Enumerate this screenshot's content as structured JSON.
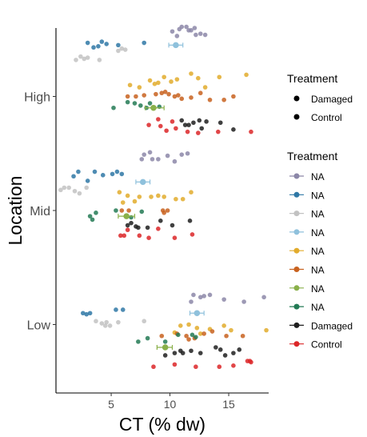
{
  "chart_data": {
    "type": "scatter",
    "xlabel": "CT (% dw)",
    "ylabel": "Location",
    "x_ticks": [
      "5",
      "10",
      "15"
    ],
    "x_tick_values": [
      5,
      10,
      15
    ],
    "xlim": [
      0.3,
      18.4
    ],
    "categories": [
      "High",
      "Mid",
      "Low"
    ],
    "legend_position": "right",
    "legend_top": {
      "title": "Treatment",
      "entries": [
        {
          "label": "Damaged"
        },
        {
          "label": "Control"
        }
      ]
    },
    "legend_bottom": {
      "title": "Treatment",
      "entries": [
        {
          "label": "NA",
          "color": "#8c87a8"
        },
        {
          "label": "NA",
          "color": "#2f78a6"
        },
        {
          "label": "NA",
          "color": "#c2c2c2"
        },
        {
          "label": "NA",
          "color": "#8fc1dc"
        },
        {
          "label": "NA",
          "color": "#e2ab2c"
        },
        {
          "label": "NA",
          "color": "#c8621f"
        },
        {
          "label": "NA",
          "color": "#8ab04a"
        },
        {
          "label": "NA",
          "color": "#237a55"
        },
        {
          "label": "Damaged",
          "color": "#1f1f1f"
        },
        {
          "label": "Control",
          "color": "#dc2628"
        }
      ]
    },
    "series": [
      {
        "location": "High",
        "offset": 0.55,
        "color": "#8c87a8",
        "x": [
          10.2,
          10.6,
          11.0,
          11.4,
          11.8,
          12.2,
          12.6,
          13.0,
          10.8,
          11.6,
          12.1
        ],
        "jitter": [
          0.02,
          -0.02,
          0.06,
          0.06,
          0.03,
          -0.01,
          0.0,
          -0.01,
          0.04,
          0.03,
          0.05
        ]
      },
      {
        "location": "High",
        "offset": 0.45,
        "color": "#2f78a6",
        "x": [
          3.0,
          3.5,
          4.2,
          4.6,
          5.6,
          7.8,
          3.9
        ],
        "jitter": [
          0.02,
          -0.02,
          0.03,
          0.01,
          0.0,
          0.02,
          -0.01
        ]
      },
      {
        "location": "High",
        "offset": 0.4,
        "color": "#c2c2c2",
        "x": [
          2.0,
          2.4,
          2.7,
          3.0,
          4.0,
          5.6,
          5.9,
          6.2
        ],
        "jitter": [
          -0.08,
          -0.05,
          -0.07,
          -0.06,
          -0.08,
          0.0,
          0.02,
          0.01
        ]
      },
      {
        "location": "High",
        "offset": 0.45,
        "color": "#8fc1dc",
        "x": [
          10.5
        ],
        "err": [
          9.9,
          11.1
        ],
        "jitter": [
          0.0
        ],
        "mean": true
      },
      {
        "location": "High",
        "offset": 0.1,
        "color": "#e2ab2c",
        "x": [
          6.6,
          7.4,
          8.3,
          9.0,
          10.1,
          10.6,
          11.8,
          12.4,
          14.2,
          16.5,
          13.0,
          9.5,
          8.7
        ],
        "jitter": [
          0.0,
          -0.02,
          0.04,
          0.02,
          0.03,
          0.05,
          0.1,
          0.06,
          0.07,
          0.09,
          -0.02,
          0.07,
          0.01
        ]
      },
      {
        "location": "High",
        "offset": 0.0,
        "color": "#c8621f",
        "x": [
          6.4,
          7.1,
          7.8,
          8.8,
          9.3,
          9.9,
          10.4,
          11.0,
          11.8,
          12.6,
          13.4,
          14.6,
          15.4,
          10.7,
          9.6
        ],
        "jitter": [
          0.0,
          0.0,
          0.01,
          0.02,
          0.03,
          0.02,
          0.0,
          -0.02,
          -0.01,
          0.03,
          -0.03,
          -0.03,
          0.0,
          0.01,
          0.04
        ]
      },
      {
        "location": "High",
        "offset": -0.1,
        "color": "#237a55",
        "x": [
          5.2,
          6.4,
          7.5,
          8.3,
          9.1,
          8.0,
          7.0
        ],
        "jitter": [
          0.0,
          0.05,
          0.02,
          0.04,
          0.01,
          0.0,
          0.04
        ]
      },
      {
        "location": "High",
        "offset": -0.1,
        "color": "#8ab04a",
        "x": [
          8.6
        ],
        "err": [
          7.9,
          9.5
        ],
        "jitter": [
          0.0
        ],
        "mean": true
      },
      {
        "location": "High",
        "offset": -0.25,
        "color": "#1f1f1f",
        "x": [
          11.0,
          11.6,
          12.0,
          12.5,
          13.1,
          14.3,
          15.4,
          11.3,
          12.7
        ],
        "jitter": [
          0.04,
          0.0,
          0.02,
          0.04,
          0.03,
          0.02,
          -0.04,
          0.0,
          -0.03
        ]
      },
      {
        "location": "High",
        "offset": -0.25,
        "color": "#dc2628",
        "x": [
          8.2,
          9.0,
          9.7,
          10.5,
          11.5,
          12.4,
          14.1,
          16.9,
          9.2,
          10.2
        ],
        "jitter": [
          0.0,
          0.05,
          -0.05,
          -0.03,
          -0.06,
          -0.07,
          -0.06,
          -0.06,
          -0.01,
          0.03
        ]
      },
      {
        "location": "Mid",
        "offset": 0.45,
        "color": "#8c87a8",
        "x": [
          7.8,
          8.3,
          9.0,
          9.8,
          10.4,
          11.0,
          11.5,
          7.6,
          8.5
        ],
        "jitter": [
          0.04,
          0.06,
          0.0,
          0.03,
          -0.02,
          0.04,
          0.05,
          0.0,
          0.0
        ]
      },
      {
        "location": "Mid",
        "offset": 0.3,
        "color": "#2f78a6",
        "x": [
          1.8,
          2.2,
          3.0,
          3.6,
          4.3,
          5.1,
          5.5,
          5.9
        ],
        "jitter": [
          0.0,
          0.04,
          -0.04,
          0.04,
          0.01,
          0.02,
          0.04,
          0.02
        ]
      },
      {
        "location": "Mid",
        "offset": 0.2,
        "color": "#c2c2c2",
        "x": [
          0.7,
          1.0,
          1.4,
          1.9,
          2.3,
          2.9
        ],
        "jitter": [
          -0.02,
          0.0,
          0.0,
          -0.03,
          -0.05,
          0.0
        ]
      },
      {
        "location": "Mid",
        "offset": 0.25,
        "color": "#8fc1dc",
        "x": [
          7.7
        ],
        "err": [
          7.1,
          8.3
        ],
        "jitter": [
          0.0
        ],
        "mean": true
      },
      {
        "location": "Mid",
        "offset": 0.1,
        "color": "#e2ab2c",
        "x": [
          5.7,
          6.4,
          7.0,
          8.4,
          9.5,
          10.5,
          11.1,
          11.8,
          6.0,
          7.4,
          9.0
        ],
        "jitter": [
          0.06,
          0.03,
          -0.02,
          0.02,
          0.02,
          0.0,
          0.0,
          0.06,
          -0.03,
          0.02,
          0.03
        ]
      },
      {
        "location": "Mid",
        "offset": 0.0,
        "color": "#c8621f",
        "x": [
          5.9,
          6.5,
          9.4,
          9.8,
          9.5
        ],
        "jitter": [
          0.0,
          0.0,
          0.0,
          0.0,
          -0.02
        ]
      },
      {
        "location": "Mid",
        "offset": -0.05,
        "color": "#237a55",
        "x": [
          3.2,
          3.7,
          5.4,
          6.7,
          7.6,
          3.4
        ],
        "jitter": [
          0.0,
          0.03,
          0.05,
          -0.01,
          0.04,
          -0.03
        ]
      },
      {
        "location": "Mid",
        "offset": -0.05,
        "color": "#8ab04a",
        "x": [
          6.3
        ],
        "err": [
          5.6,
          7.0
        ],
        "jitter": [
          0.0
        ],
        "mean": true
      },
      {
        "location": "Mid",
        "offset": -0.15,
        "color": "#1f1f1f",
        "x": [
          6.7,
          7.3,
          8.1,
          9.2,
          10.2,
          11.7,
          6.4,
          7.1
        ],
        "jitter": [
          0.04,
          0.0,
          0.0,
          0.06,
          0.02,
          0.06,
          0.02,
          0.01
        ]
      },
      {
        "location": "Mid",
        "offset": -0.2,
        "color": "#dc2628",
        "x": [
          5.8,
          6.4,
          7.4,
          8.2,
          9.0,
          10.4,
          11.9,
          6.1
        ],
        "jitter": [
          -0.02,
          0.03,
          -0.02,
          -0.04,
          0.04,
          -0.04,
          -0.01,
          -0.02
        ]
      },
      {
        "location": "Low",
        "offset": 0.2,
        "color": "#8c87a8",
        "x": [
          11.8,
          12.6,
          13.4,
          14.6,
          16.3,
          18.0,
          12.9,
          12.0
        ],
        "jitter": [
          0.0,
          0.04,
          0.06,
          0.02,
          0.0,
          0.04,
          0.05,
          0.06
        ]
      },
      {
        "location": "Low",
        "offset": 0.1,
        "color": "#2f78a6",
        "x": [
          2.6,
          3.2,
          5.4,
          6.0,
          2.9
        ],
        "jitter": [
          0.0,
          0.0,
          0.03,
          0.03,
          -0.01
        ]
      },
      {
        "location": "Low",
        "offset": 0.05,
        "color": "#c2c2c2",
        "x": [
          3.7,
          4.2,
          4.5,
          4.6,
          5.6,
          7.8,
          4.9
        ],
        "jitter": [
          -0.02,
          -0.04,
          -0.06,
          -0.03,
          -0.03,
          -0.02,
          -0.06
        ]
      },
      {
        "location": "Low",
        "offset": 0.05,
        "color": "#8fc1dc",
        "x": [
          12.3
        ],
        "err": [
          11.7,
          12.9
        ],
        "jitter": [
          0.05
        ],
        "mean": true
      },
      {
        "location": "Low",
        "offset": -0.05,
        "color": "#e2ab2c",
        "x": [
          10.4,
          11.6,
          12.3,
          13.4,
          14.6,
          15.2,
          18.2,
          10.9,
          12.6
        ],
        "jitter": [
          -0.02,
          0.05,
          0.02,
          0.01,
          0.04,
          0.0,
          0.0,
          0.04,
          -0.03
        ]
      },
      {
        "location": "Low",
        "offset": -0.1,
        "color": "#c8621f",
        "x": [
          9.3,
          10.6,
          11.4,
          12.1,
          13.6,
          14.8,
          16.2,
          12.9,
          11.6
        ],
        "jitter": [
          0.0,
          0.02,
          0.0,
          -0.02,
          0.04,
          0.0,
          0.0,
          0.02,
          -0.03
        ]
      },
      {
        "location": "Low",
        "offset": -0.15,
        "color": "#237a55",
        "x": [
          7.3,
          8.1,
          9.6,
          10.7,
          11.9,
          12.2
        ],
        "jitter": [
          0.0,
          0.03,
          0.0,
          0.06,
          0.06,
          0.04
        ]
      },
      {
        "location": "Low",
        "offset": -0.2,
        "color": "#8ab04a",
        "x": [
          9.6
        ],
        "err": [
          8.9,
          10.2
        ],
        "jitter": [
          0.0
        ],
        "mean": true
      },
      {
        "location": "Low",
        "offset": -0.25,
        "color": "#1f1f1f",
        "x": [
          9.6,
          10.4,
          11.1,
          11.8,
          12.6,
          13.9,
          14.7,
          15.4,
          15.9,
          10.9,
          14.3
        ],
        "jitter": [
          -0.02,
          0.0,
          0.0,
          0.02,
          0.0,
          0.05,
          -0.02,
          0.0,
          0.03,
          0.02,
          0.03
        ]
      },
      {
        "location": "Low",
        "offset": -0.3,
        "color": "#dc2628",
        "x": [
          8.6,
          10.4,
          12.2,
          14.2,
          15.4,
          16.6,
          16.9,
          16.8
        ],
        "jitter": [
          -0.07,
          -0.05,
          -0.07,
          -0.07,
          -0.06,
          -0.02,
          -0.03,
          -0.02
        ]
      }
    ]
  }
}
